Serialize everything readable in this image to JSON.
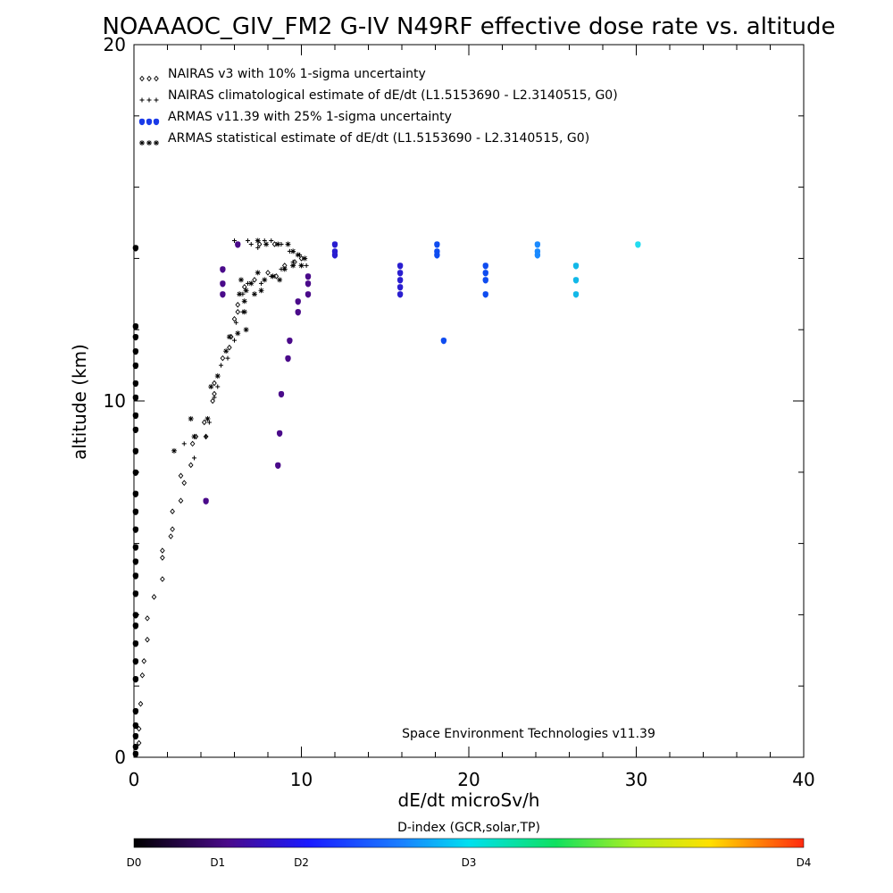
{
  "chart_data": {
    "type": "scatter",
    "title": "NOAAAOC_GIV_FM2 G-IV   N49RF  effective dose rate vs. altitude",
    "xlabel": "dE/dt microSv/h",
    "ylabel": "altitude (km)",
    "xlim": [
      0,
      40
    ],
    "ylim": [
      0,
      20
    ],
    "x_ticks": [
      "0",
      "10",
      "20",
      "30",
      "40"
    ],
    "y_ticks": [
      "0",
      "10",
      "20"
    ],
    "grid": false,
    "legend_position": "top-left",
    "annotation": "Space Environment Technologies v11.39",
    "colorbar": {
      "label": "D-index (GCR,solar,TP)",
      "ticks": [
        {
          "label": "D0",
          "value": 0
        },
        {
          "label": "D1",
          "value": 5
        },
        {
          "label": "D2",
          "value": 10
        },
        {
          "label": "D3",
          "value": 20
        },
        {
          "label": "D4",
          "value": 40
        }
      ]
    },
    "series": [
      {
        "name": "NAIRAS v3 with 10% 1-sigma uncertainty",
        "marker": "diamond",
        "color": "#000000",
        "points": [
          [
            0.3,
            0.4
          ],
          [
            0.3,
            0.8
          ],
          [
            0.4,
            1.5
          ],
          [
            0.5,
            2.3
          ],
          [
            0.6,
            2.7
          ],
          [
            0.8,
            3.3
          ],
          [
            0.8,
            3.9
          ],
          [
            1.2,
            4.5
          ],
          [
            1.7,
            5.0
          ],
          [
            1.7,
            5.6
          ],
          [
            1.7,
            5.8
          ],
          [
            2.2,
            6.2
          ],
          [
            2.3,
            6.4
          ],
          [
            2.3,
            6.9
          ],
          [
            2.8,
            7.2
          ],
          [
            3.0,
            7.7
          ],
          [
            2.8,
            7.9
          ],
          [
            3.4,
            8.2
          ],
          [
            3.5,
            8.8
          ],
          [
            3.7,
            9.0
          ],
          [
            4.3,
            9.0
          ],
          [
            4.2,
            9.4
          ],
          [
            4.7,
            10.0
          ],
          [
            4.8,
            10.2
          ],
          [
            4.8,
            10.5
          ],
          [
            5.3,
            11.2
          ],
          [
            5.7,
            11.5
          ],
          [
            5.8,
            11.8
          ],
          [
            6.0,
            12.3
          ],
          [
            6.2,
            12.5
          ],
          [
            6.2,
            12.7
          ],
          [
            6.6,
            13.2
          ],
          [
            7.2,
            13.4
          ],
          [
            8.0,
            13.6
          ],
          [
            8.5,
            13.5
          ],
          [
            9.0,
            13.8
          ],
          [
            9.6,
            13.9
          ],
          [
            10.0,
            14.0
          ],
          [
            7.5,
            14.4
          ],
          [
            8.4,
            14.4
          ]
        ]
      },
      {
        "name": "NAIRAS climatological estimate of dE/dt (L1.5153690 - L2.3140515, G0)",
        "marker": "plus",
        "color": "#000000",
        "points": [
          [
            3.6,
            8.4
          ],
          [
            3.0,
            8.8
          ],
          [
            4.3,
            9.0
          ],
          [
            4.5,
            9.4
          ],
          [
            4.8,
            10.1
          ],
          [
            5.0,
            10.4
          ],
          [
            5.2,
            11.0
          ],
          [
            5.6,
            11.2
          ],
          [
            6.0,
            11.7
          ],
          [
            6.1,
            12.2
          ],
          [
            6.5,
            12.5
          ],
          [
            6.5,
            13.0
          ],
          [
            6.8,
            13.3
          ],
          [
            6.0,
            14.5
          ],
          [
            6.8,
            14.5
          ],
          [
            7.0,
            14.4
          ],
          [
            7.4,
            14.3
          ],
          [
            7.8,
            14.5
          ],
          [
            8.2,
            14.5
          ],
          [
            8.8,
            14.4
          ],
          [
            9.3,
            14.2
          ],
          [
            9.9,
            14.1
          ],
          [
            10.3,
            13.8
          ],
          [
            7.6,
            13.3
          ],
          [
            8.2,
            13.5
          ],
          [
            8.8,
            13.7
          ],
          [
            9.5,
            13.9
          ]
        ]
      },
      {
        "name": "ARMAS v11.39 with 25% 1-sigma uncertainty",
        "marker": "dot",
        "color": "#0022dd",
        "points": [
          [
            0.1,
            0.1
          ],
          [
            0.1,
            0.3
          ],
          [
            0.1,
            0.6
          ],
          [
            0.1,
            0.9
          ],
          [
            0.1,
            1.3
          ],
          [
            0.1,
            2.2
          ],
          [
            0.1,
            2.7
          ],
          [
            0.1,
            3.2
          ],
          [
            0.1,
            3.7
          ],
          [
            0.1,
            4.0
          ],
          [
            0.1,
            4.6
          ],
          [
            0.1,
            5.1
          ],
          [
            0.1,
            5.5
          ],
          [
            0.1,
            5.9
          ],
          [
            0.1,
            6.4
          ],
          [
            0.1,
            6.9
          ],
          [
            0.1,
            7.4
          ],
          [
            0.1,
            8.0
          ],
          [
            0.1,
            8.6
          ],
          [
            0.1,
            9.2
          ],
          [
            0.1,
            9.6
          ],
          [
            0.1,
            10.1
          ],
          [
            0.1,
            10.5
          ],
          [
            0.1,
            11.0
          ],
          [
            0.1,
            11.4
          ],
          [
            0.1,
            11.8
          ],
          [
            0.1,
            12.1
          ],
          [
            0.1,
            14.3
          ],
          [
            4.3,
            7.2
          ],
          [
            5.3,
            13.0
          ],
          [
            5.3,
            13.3
          ],
          [
            5.3,
            13.7
          ],
          [
            6.2,
            14.4
          ],
          [
            8.6,
            8.2
          ],
          [
            8.7,
            9.1
          ],
          [
            8.8,
            10.2
          ],
          [
            9.2,
            11.2
          ],
          [
            9.3,
            11.7
          ],
          [
            9.8,
            12.5
          ],
          [
            9.8,
            12.8
          ],
          [
            10.4,
            13.0
          ],
          [
            10.4,
            13.3
          ],
          [
            10.4,
            13.5
          ],
          [
            12.0,
            14.1
          ],
          [
            12.0,
            14.2
          ],
          [
            12.0,
            14.4
          ],
          [
            15.9,
            13.0
          ],
          [
            15.9,
            13.2
          ],
          [
            15.9,
            13.4
          ],
          [
            15.9,
            13.6
          ],
          [
            15.9,
            13.8
          ],
          [
            18.1,
            14.1
          ],
          [
            18.1,
            14.2
          ],
          [
            18.1,
            14.4
          ],
          [
            18.5,
            11.7
          ],
          [
            21.0,
            13.0
          ],
          [
            21.0,
            13.4
          ],
          [
            21.0,
            13.6
          ],
          [
            21.0,
            13.8
          ],
          [
            24.1,
            14.1
          ],
          [
            24.1,
            14.2
          ],
          [
            24.1,
            14.4
          ],
          [
            26.4,
            13.0
          ],
          [
            26.4,
            13.4
          ],
          [
            26.4,
            13.8
          ],
          [
            30.1,
            14.4
          ]
        ]
      },
      {
        "name": "ARMAS statistical estimate of dE/dt (L1.5153690 - L2.3140515, G0)",
        "marker": "asterisk",
        "color": "#000000",
        "points": [
          [
            2.4,
            8.6
          ],
          [
            3.4,
            9.5
          ],
          [
            3.6,
            9.0
          ],
          [
            4.4,
            9.5
          ],
          [
            4.6,
            10.4
          ],
          [
            5.0,
            10.7
          ],
          [
            5.5,
            11.4
          ],
          [
            5.7,
            11.8
          ],
          [
            6.2,
            11.9
          ],
          [
            6.7,
            12.0
          ],
          [
            6.6,
            12.5
          ],
          [
            6.6,
            12.8
          ],
          [
            6.3,
            13.0
          ],
          [
            6.7,
            13.1
          ],
          [
            7.2,
            13.0
          ],
          [
            7.6,
            13.1
          ],
          [
            7.8,
            13.4
          ],
          [
            8.3,
            13.5
          ],
          [
            8.7,
            13.4
          ],
          [
            9.0,
            13.7
          ],
          [
            9.5,
            13.8
          ],
          [
            10.0,
            13.8
          ],
          [
            10.2,
            14.0
          ],
          [
            9.5,
            14.2
          ],
          [
            9.8,
            14.1
          ],
          [
            7.4,
            14.5
          ],
          [
            7.9,
            14.4
          ],
          [
            8.6,
            14.4
          ],
          [
            9.2,
            14.4
          ],
          [
            6.4,
            13.4
          ],
          [
            7.0,
            13.3
          ],
          [
            7.4,
            13.6
          ]
        ]
      }
    ]
  }
}
